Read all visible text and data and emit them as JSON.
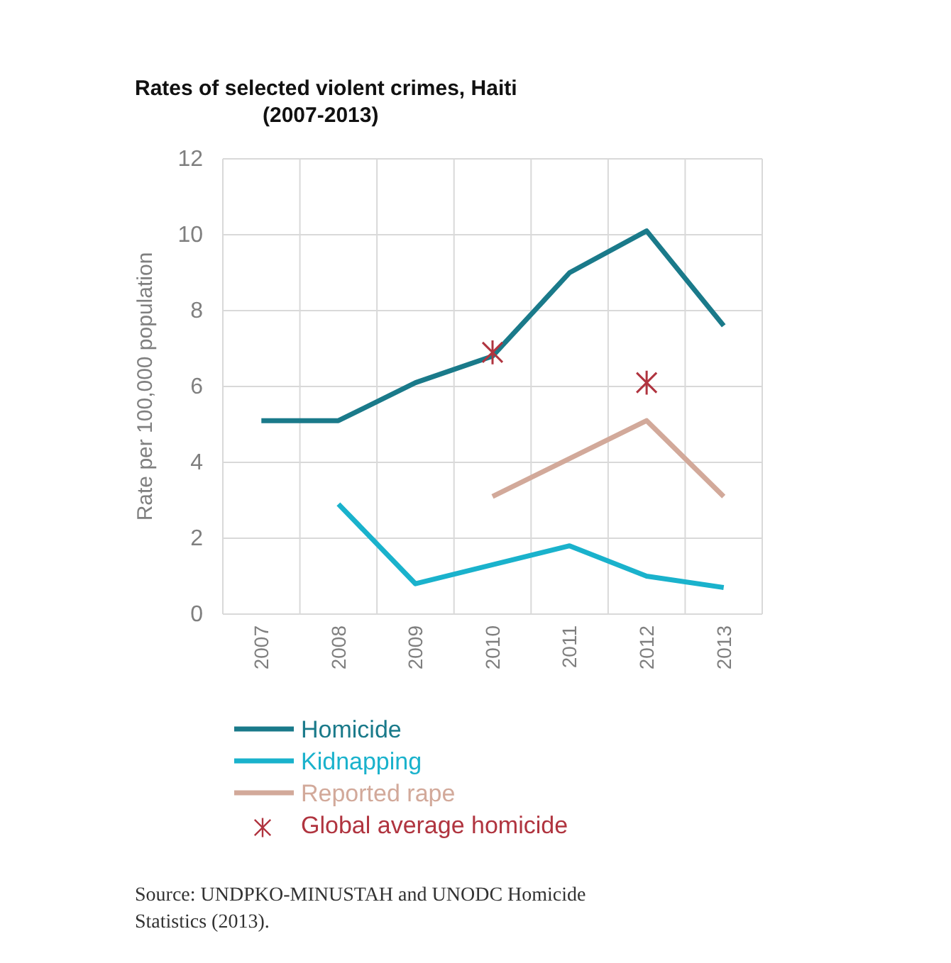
{
  "chart_data": {
    "type": "line",
    "title": "Rates of selected violent crimes, Haiti\n(2007-2013)",
    "ylabel": "Rate per 100,000 population",
    "categories": [
      "2007",
      "2008",
      "2009",
      "2010",
      "2011",
      "2012",
      "2013"
    ],
    "series": [
      {
        "name": "Homicide",
        "color": "#1a7a8a",
        "values": [
          5.1,
          5.1,
          6.1,
          6.8,
          9.0,
          10.1,
          7.6
        ]
      },
      {
        "name": "Kidnapping",
        "color": "#1ab2cc",
        "values": [
          null,
          2.9,
          0.8,
          1.3,
          1.8,
          1.0,
          0.7
        ]
      },
      {
        "name": "Reported rape",
        "color": "#d2a99a",
        "values": [
          null,
          null,
          null,
          3.1,
          4.1,
          5.1,
          3.1
        ]
      },
      {
        "name": "Global average homicide",
        "type": "scatter",
        "marker": "cross",
        "color": "#b0343f",
        "values": [
          null,
          null,
          null,
          6.9,
          null,
          6.1,
          null
        ]
      }
    ],
    "ylim": [
      0,
      12
    ],
    "yticks": [
      0,
      2,
      4,
      6,
      8,
      10,
      12
    ],
    "grid": true,
    "legend": "bottom",
    "marker": "none",
    "line_style": "solid",
    "annotations": [
      "Source: UNDPKO-MINUSTAH and UNODC Homicide\nStatistics (2013)."
    ]
  }
}
